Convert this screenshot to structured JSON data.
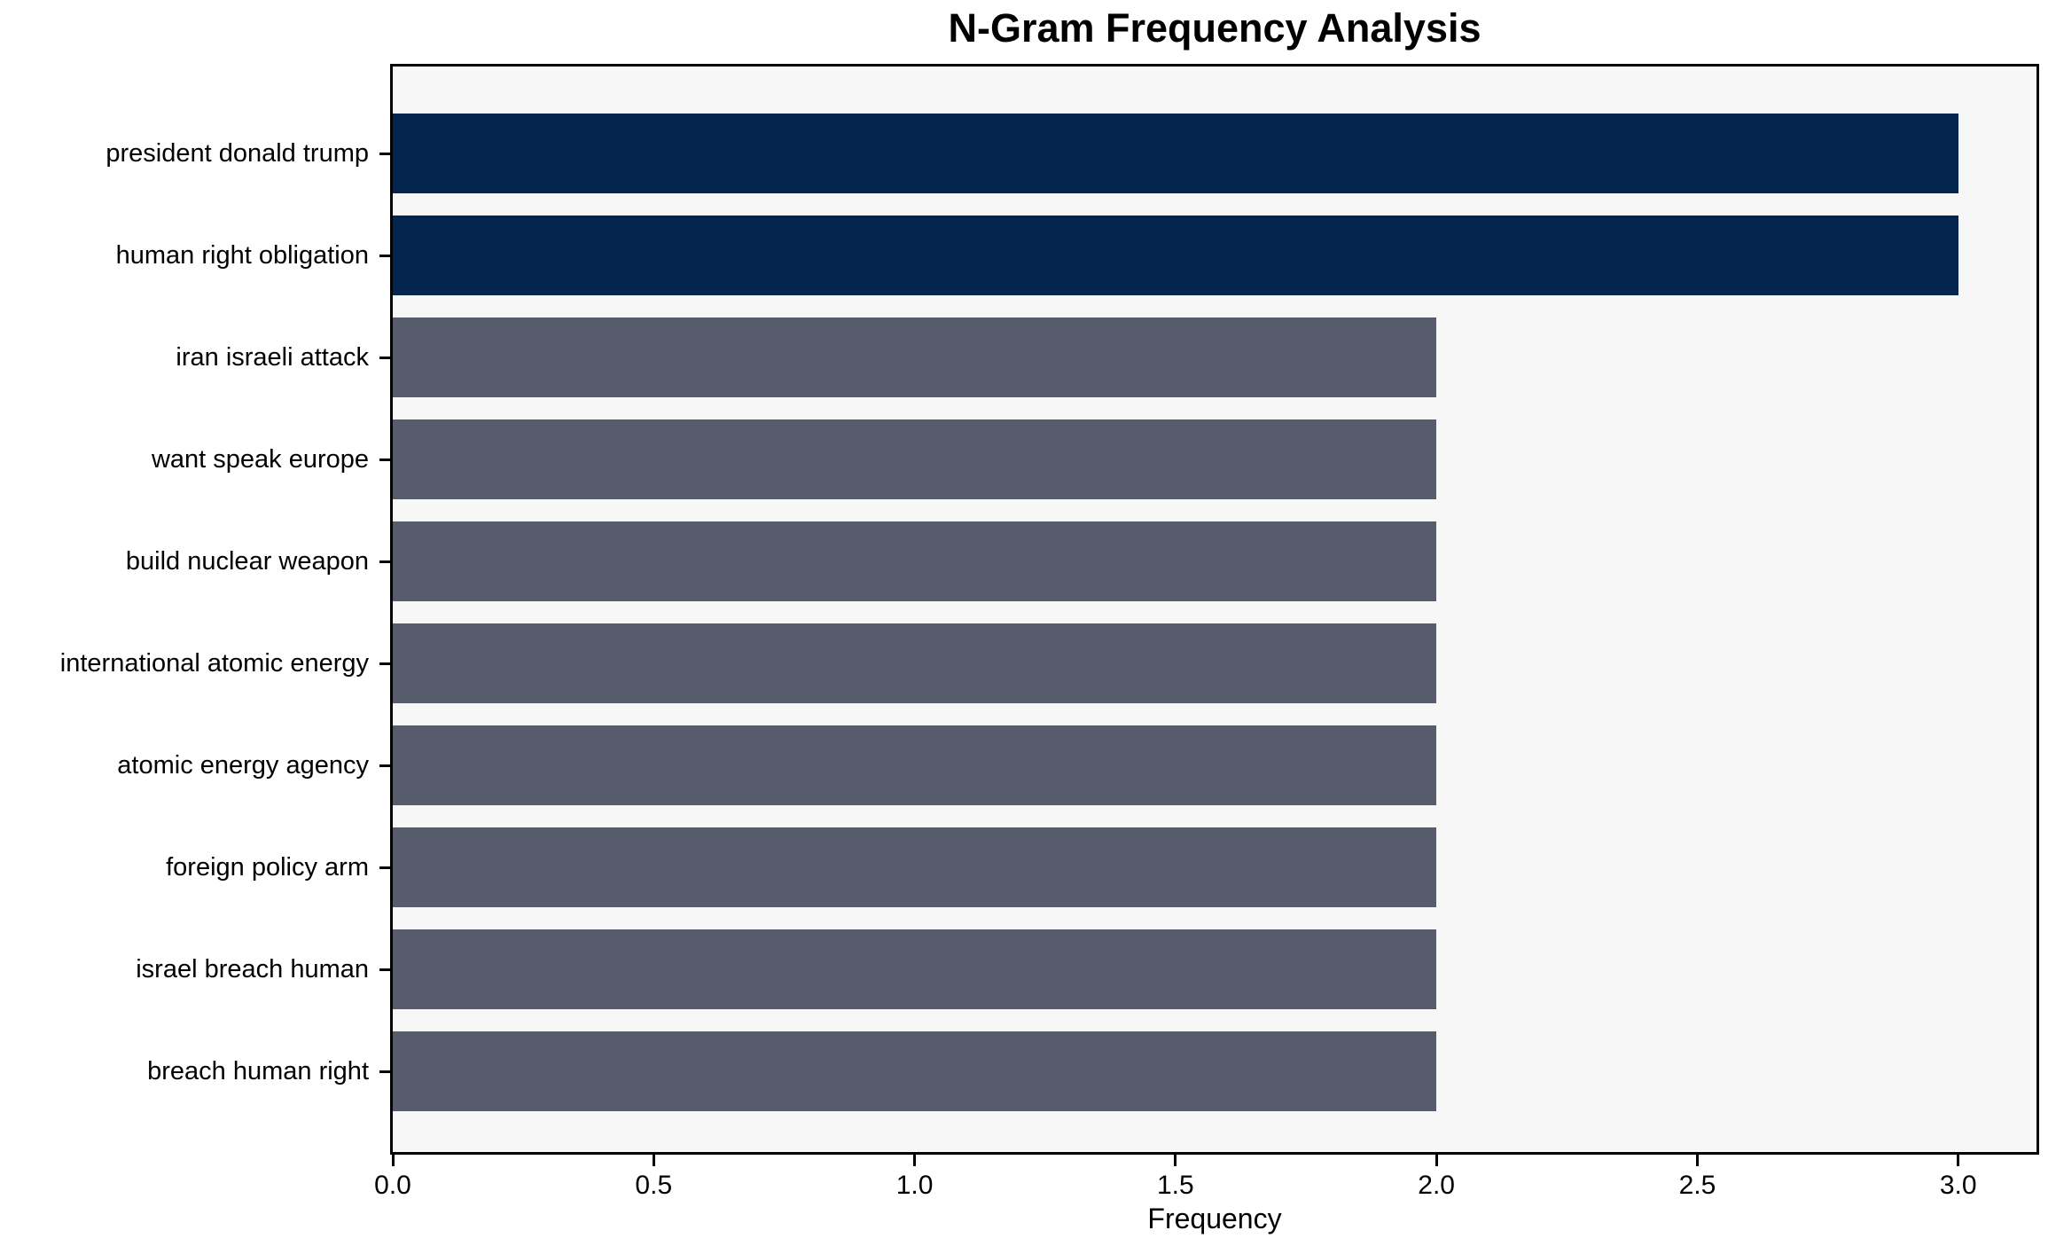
{
  "figure": {
    "background_color": "#ffffff",
    "plot_background_color": "#f7f7f8",
    "spine_color": "#000000",
    "text_color": "#000000"
  },
  "chart_data": {
    "type": "bar",
    "orientation": "horizontal",
    "title": "N-Gram Frequency Analysis",
    "xlabel": "Frequency",
    "ylabel": "",
    "categories": [
      "president donald trump",
      "human right obligation",
      "iran israeli attack",
      "want speak europe",
      "build nuclear weapon",
      "international atomic energy",
      "atomic energy agency",
      "foreign policy arm",
      "israel breach human",
      "breach human right"
    ],
    "values": [
      3.0,
      3.0,
      2.0,
      2.0,
      2.0,
      2.0,
      2.0,
      2.0,
      2.0,
      2.0
    ],
    "bar_colors": [
      "#04254e",
      "#04254e",
      "#565c6b",
      "#565c6b",
      "#565c6b",
      "#565c6b",
      "#565c6b",
      "#565c6b",
      "#565c6b",
      "#565c6b"
    ],
    "palette": {
      "high_frequency_color": "#04254e",
      "default_color": "#565c6b"
    },
    "x_tick_labels": [
      "0.0",
      "0.5",
      "1.0",
      "1.5",
      "2.0",
      "2.5",
      "3.0"
    ],
    "x_tick_values": [
      0,
      0.5,
      1,
      1.5,
      2,
      2.5,
      3
    ],
    "xlim": [
      0,
      3.15
    ],
    "grid": "off",
    "legend": "none"
  }
}
